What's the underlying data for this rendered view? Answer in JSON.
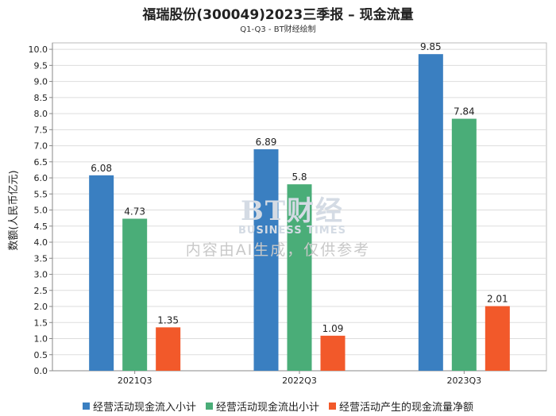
{
  "chart_data": {
    "type": "bar",
    "title": "福瑞股份(300049)2023三季报 – 现金流量",
    "subtitle": "Q1-Q3 - BT财经绘制",
    "xlabel": "",
    "ylabel": "数额(人民币亿元)",
    "ylim": [
      0,
      10.2
    ],
    "yticks": [
      "0.0",
      "0.5",
      "1.0",
      "1.5",
      "2.0",
      "2.5",
      "3.0",
      "3.5",
      "4.0",
      "4.5",
      "5.0",
      "5.5",
      "6.0",
      "6.5",
      "7.0",
      "7.5",
      "8.0",
      "8.5",
      "9.0",
      "9.5",
      "10.0"
    ],
    "grid": true,
    "legend_position": "bottom",
    "categories": [
      "2021Q3",
      "2022Q3",
      "2023Q3"
    ],
    "series": [
      {
        "name": "经营活动现金流入小计",
        "color": "#3a7fc1",
        "values": [
          6.08,
          6.89,
          9.85
        ],
        "labels": [
          "6.08",
          "6.89",
          "9.85"
        ]
      },
      {
        "name": "经营活动现金流出小计",
        "color": "#4aad78",
        "values": [
          4.73,
          5.8,
          7.84
        ],
        "labels": [
          "4.73",
          "5.8",
          "7.84"
        ]
      },
      {
        "name": "经营活动产生的现金流量净额",
        "color": "#f2592a",
        "values": [
          1.35,
          1.09,
          2.01
        ],
        "labels": [
          "1.35",
          "1.09",
          "2.01"
        ]
      }
    ]
  },
  "watermark": {
    "logo": "BT财经",
    "sub": "BUSINESS TIMES",
    "ai_notice": "内容由AI生成，仅供参考"
  }
}
